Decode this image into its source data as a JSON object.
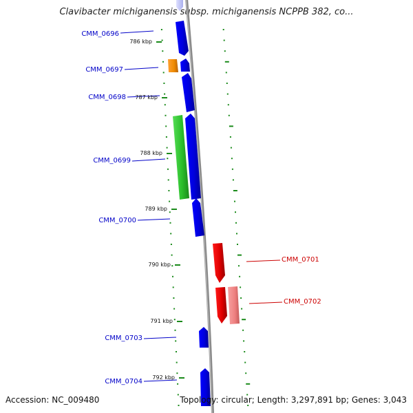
{
  "title": "Clavibacter michiganensis subsp. michiganensis NCPPB 382, co...",
  "footer": {
    "accession": "Accession: NC_009480",
    "summary": "Topology: circular; Length: 3,297,891 bp; Genes: 3,043"
  },
  "colors": {
    "backbone": "#808080",
    "forward_gene": "#0000ee",
    "reverse_gene": "#ee0000",
    "forward_label": "#0000c8",
    "reverse_label": "#cc0000",
    "rna_gene": "#ff8c00",
    "feature_green": "#33cc33",
    "feature_pink": "#f08080",
    "tick": "#1a8a1a"
  },
  "kbp_ticks": [
    "786 kbp",
    "787 kbp",
    "788 kbp",
    "789 kbp",
    "790 kbp",
    "791 kbp",
    "792 kbp"
  ],
  "genes": [
    {
      "id": "CMM_0696",
      "strand": "forward",
      "kind": "CDS"
    },
    {
      "id": "CMM_0697",
      "strand": "forward",
      "kind": "CDS"
    },
    {
      "id": "CMM_0698",
      "strand": "forward",
      "kind": "CDS"
    },
    {
      "id": "CMM_0699",
      "strand": "forward",
      "kind": "CDS"
    },
    {
      "id": "CMM_0700",
      "strand": "forward",
      "kind": "CDS"
    },
    {
      "id": "CMM_0701",
      "strand": "reverse",
      "kind": "CDS"
    },
    {
      "id": "CMM_0702",
      "strand": "reverse",
      "kind": "CDS"
    },
    {
      "id": "CMM_0703",
      "strand": "forward",
      "kind": "CDS"
    },
    {
      "id": "CMM_0704",
      "strand": "forward",
      "kind": "CDS"
    }
  ]
}
